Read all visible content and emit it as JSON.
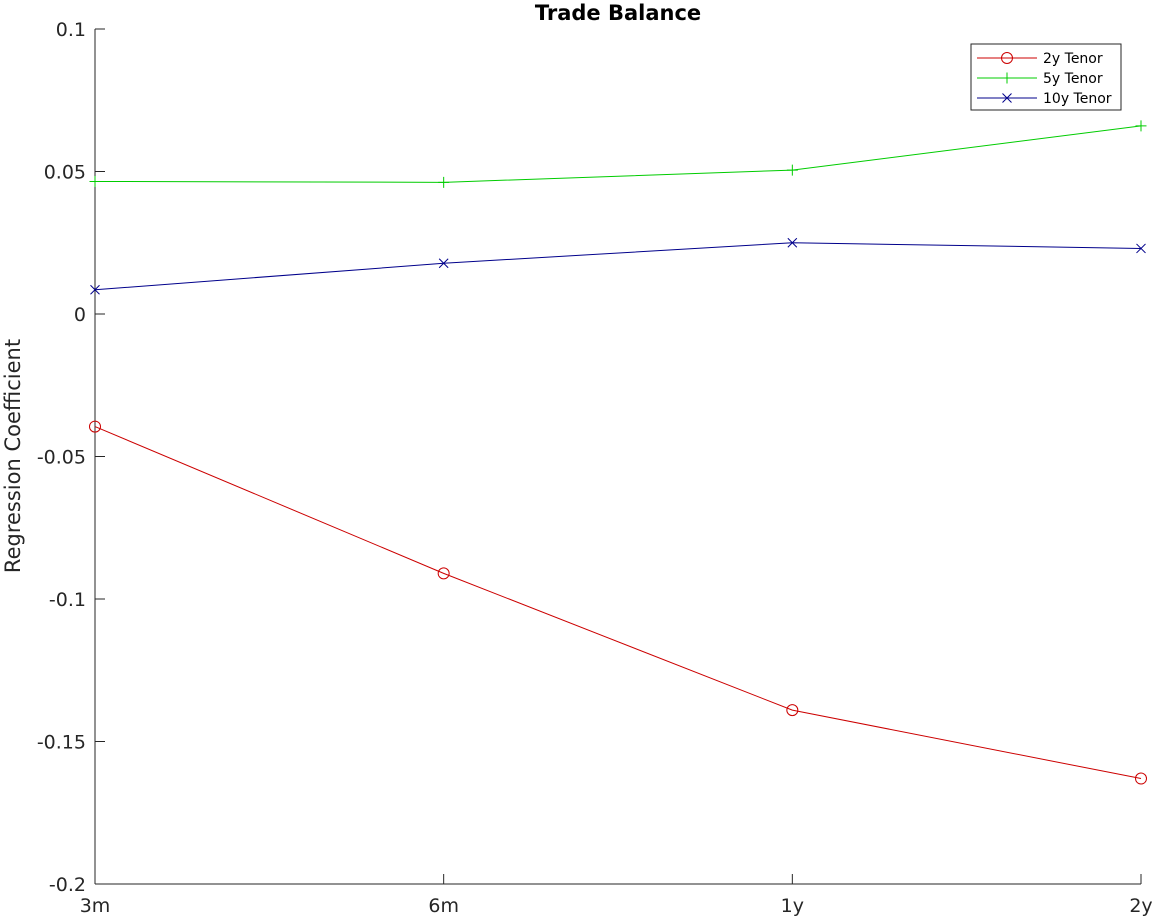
{
  "chart_data": {
    "type": "line",
    "title": "Trade Balance",
    "xlabel": "",
    "ylabel": "Regression Coefficient",
    "categories": [
      "3m",
      "6m",
      "1y",
      "2y"
    ],
    "ylim": [
      -0.2,
      0.1
    ],
    "yticks": [
      -0.2,
      -0.15,
      -0.1,
      -0.05,
      0,
      0.05,
      0.1
    ],
    "ytick_labels": [
      "-0.2",
      "-0.15",
      "-0.1",
      "-0.05",
      "0",
      "0.05",
      "0.1"
    ],
    "grid": false,
    "legend_position": "top-right",
    "series": [
      {
        "name": "2y Tenor",
        "color": "#cc0000",
        "marker": "circle",
        "values": [
          -0.0395,
          -0.091,
          -0.139,
          -0.163
        ]
      },
      {
        "name": "5y Tenor",
        "color": "#00cc00",
        "marker": "plus",
        "values": [
          0.0465,
          0.0462,
          0.0505,
          0.066
        ]
      },
      {
        "name": "10y Tenor",
        "color": "#00008b",
        "marker": "cross",
        "values": [
          0.0085,
          0.0178,
          0.025,
          0.023
        ]
      }
    ]
  }
}
